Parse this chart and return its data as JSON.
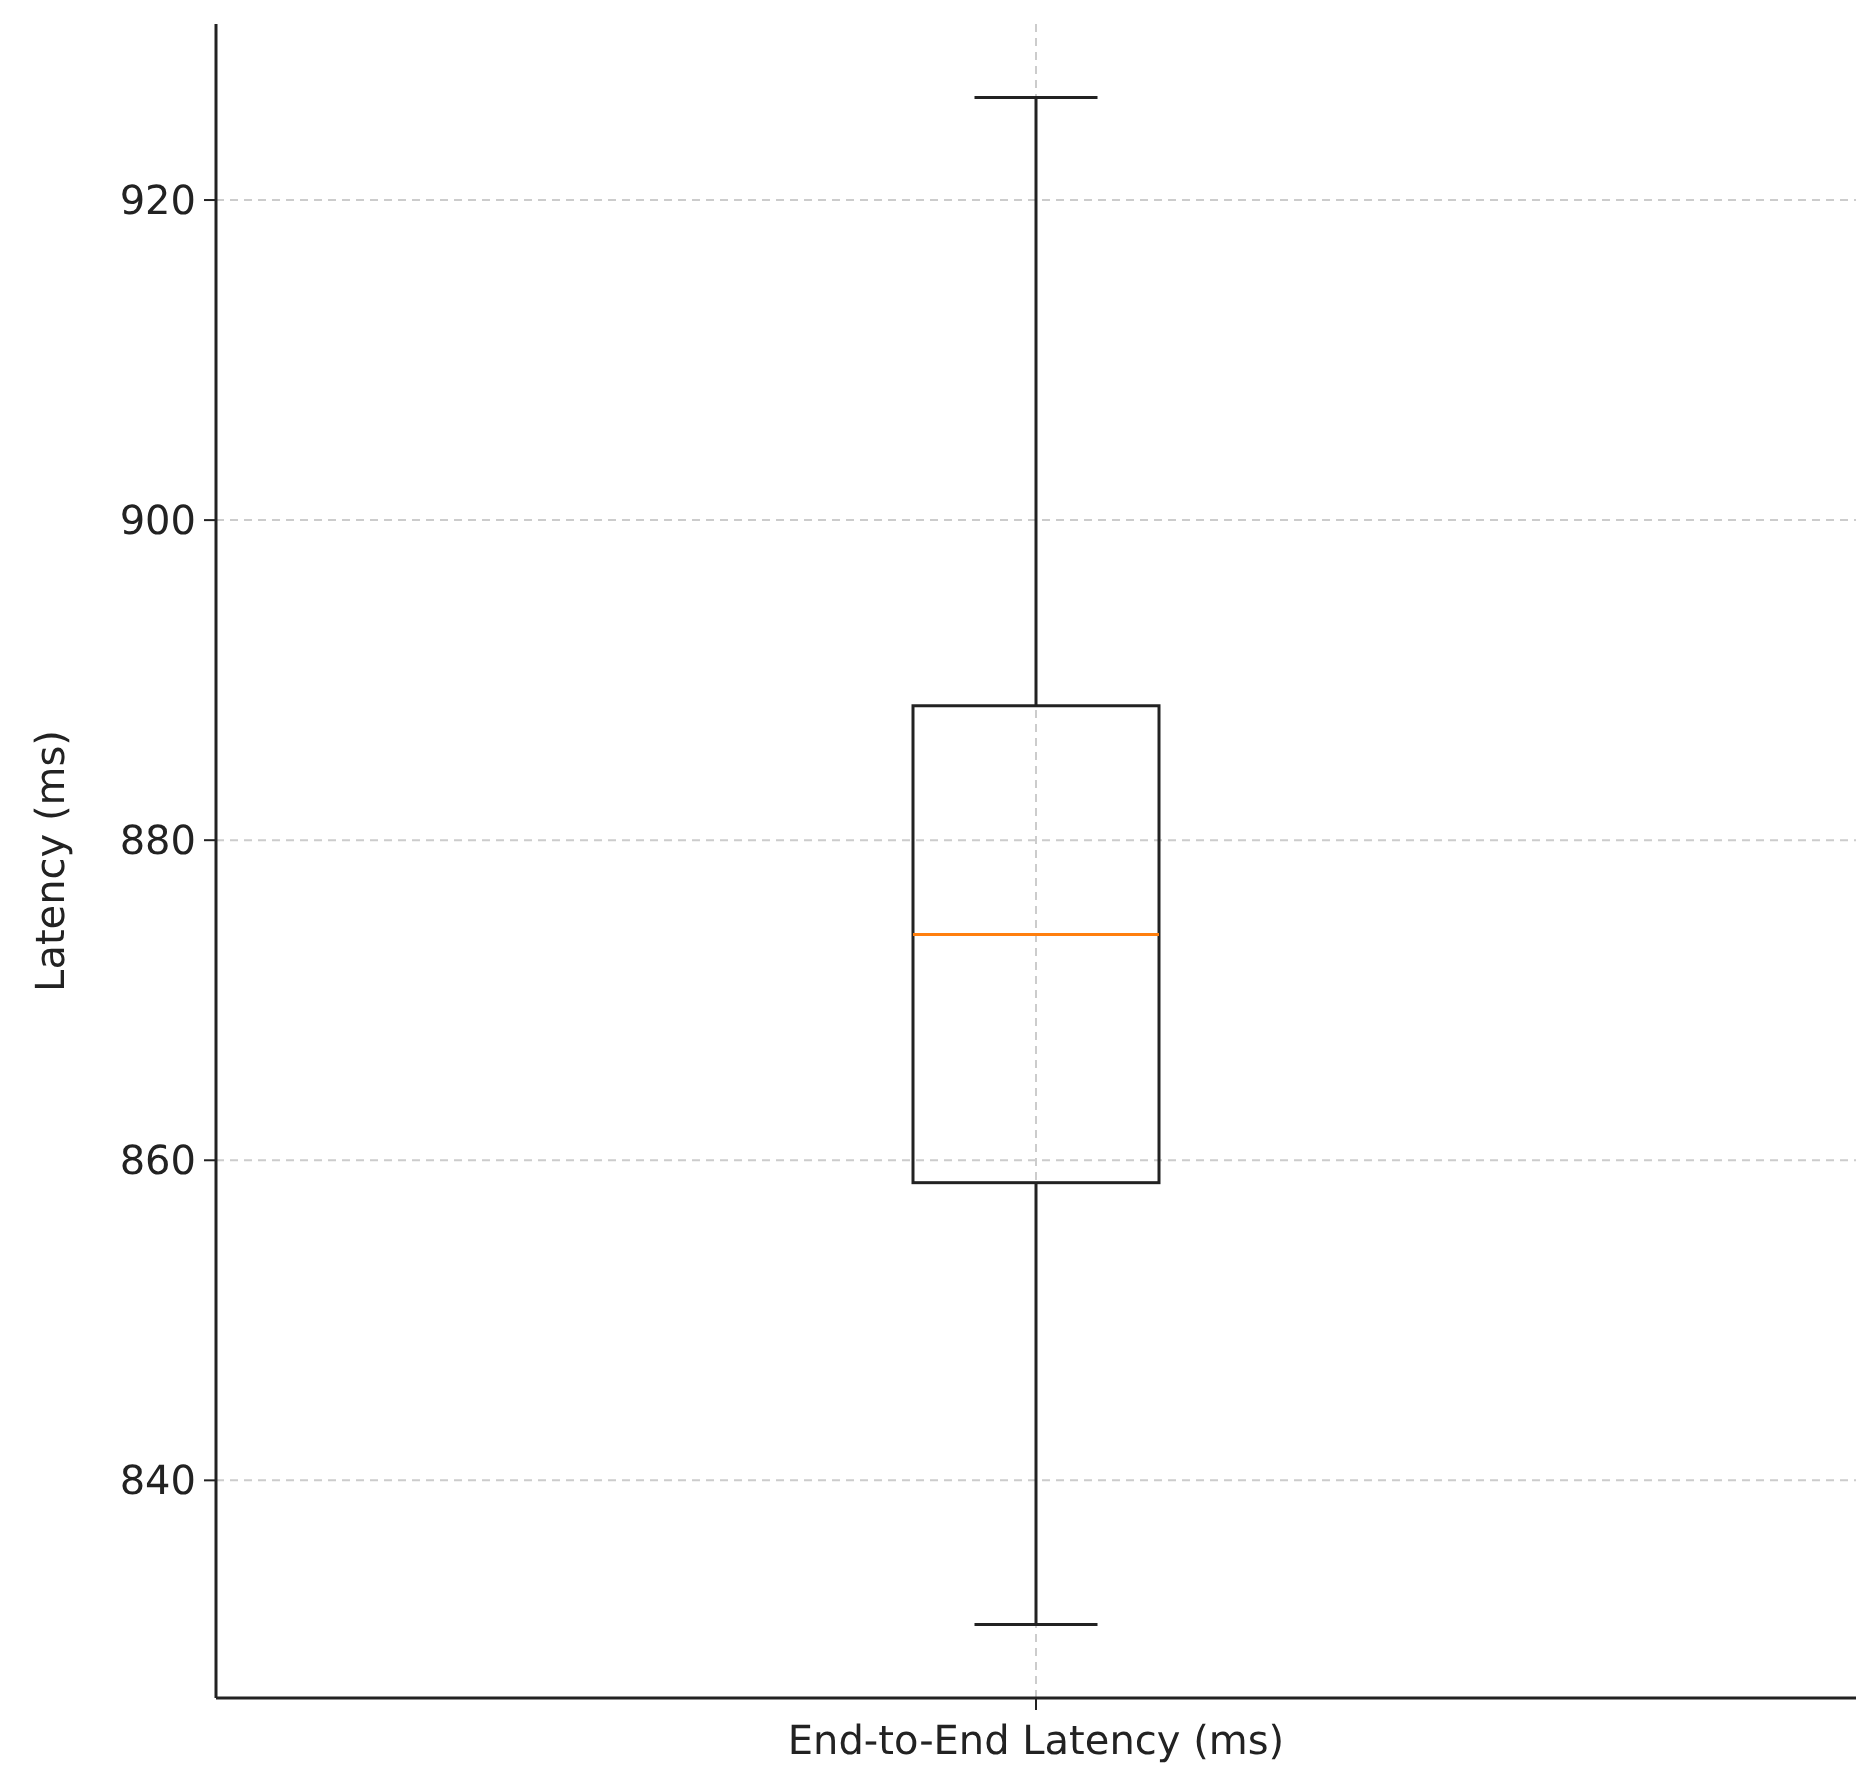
{
  "chart_data": {
    "type": "box",
    "ylabel": "Latency (ms)",
    "categories": [
      "End-to-End Latency (ms)"
    ],
    "boxes": [
      {
        "low": 831,
        "q1": 858.6,
        "median": 874.1,
        "q3": 888.4,
        "high": 926.4
      }
    ],
    "ylim": [
      826.4,
      931
    ],
    "yticks": [
      840,
      860,
      880,
      900,
      920
    ],
    "grid": true
  }
}
